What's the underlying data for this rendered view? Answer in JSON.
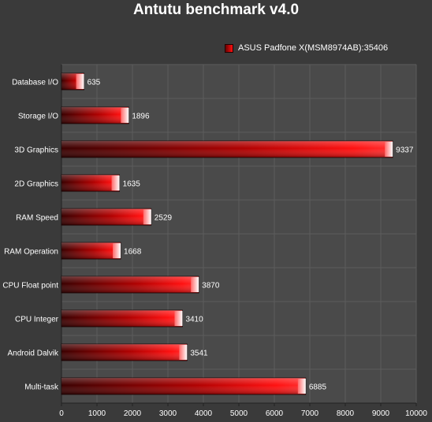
{
  "chart_data": {
    "type": "bar",
    "orientation": "horizontal",
    "title": "Antutu benchmark v4.0",
    "legend": {
      "position": "top-right",
      "entries": [
        "ASUS Padfone X(MSM8974AB):35406"
      ]
    },
    "series": [
      {
        "name": "ASUS Padfone X(MSM8974AB):35406",
        "values": [
          635,
          1896,
          9337,
          1635,
          2529,
          1668,
          3870,
          3410,
          3541,
          6885
        ]
      }
    ],
    "categories": [
      "Database I/O",
      "Storage I/O",
      "3D Graphics",
      "2D Graphics",
      "RAM Speed",
      "RAM Operation",
      "CPU Float point",
      "CPU Integer",
      "Android Dalvik",
      "Multi-task"
    ],
    "xlim": [
      0,
      10000
    ],
    "xticks": [
      0,
      1000,
      2000,
      3000,
      4000,
      5000,
      6000,
      7000,
      8000,
      9000,
      10000
    ],
    "xlabel": "",
    "ylabel": "",
    "grid": true,
    "colors": {
      "background": "#3a3a3a",
      "plot_background": "#4a4a4a",
      "bar_dark": "#3a0000",
      "bar_light": "#ff1010",
      "bar_end": "#ffffff",
      "grid": "#5c5c5c"
    }
  }
}
